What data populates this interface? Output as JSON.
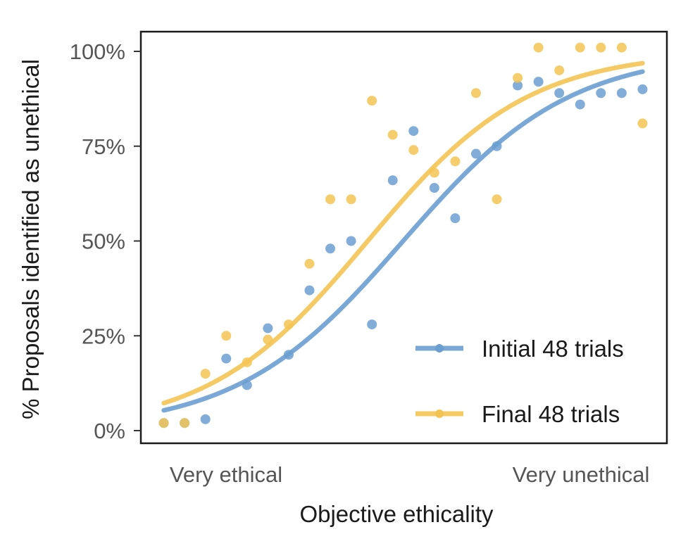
{
  "chart_data": {
    "type": "scatter",
    "title": "",
    "xlabel": "Objective ethicality",
    "ylabel": "% Proposals identified as unethical",
    "x_tick_labels": [
      "Very ethical",
      "Very unethical"
    ],
    "y_ticks": [
      0,
      25,
      50,
      75,
      100
    ],
    "y_tick_labels": [
      "0%",
      "25%",
      "50%",
      "75%",
      "100%"
    ],
    "xlim": [
      0,
      25
    ],
    "ylim": [
      -2,
      105
    ],
    "grid": false,
    "legend_position": "bottom-right",
    "series": [
      {
        "name": "Initial 48 trials",
        "color": "#6b9fd1",
        "points": [
          [
            1,
            2
          ],
          [
            2,
            2
          ],
          [
            3,
            3
          ],
          [
            4,
            19
          ],
          [
            5,
            12
          ],
          [
            6,
            27
          ],
          [
            7,
            20
          ],
          [
            8,
            37
          ],
          [
            9,
            48
          ],
          [
            10,
            50
          ],
          [
            11,
            28
          ],
          [
            12,
            66
          ],
          [
            13,
            79
          ],
          [
            14,
            64
          ],
          [
            15,
            56
          ],
          [
            16,
            73
          ],
          [
            17,
            75
          ],
          [
            18,
            91
          ],
          [
            19,
            92
          ],
          [
            20,
            89
          ],
          [
            21,
            86
          ],
          [
            22,
            89
          ],
          [
            23,
            89
          ],
          [
            24,
            90
          ]
        ],
        "fit": {
          "midpoint": 12.5,
          "slope": 0.25,
          "from": 1,
          "to": 24
        }
      },
      {
        "name": "Final 48 trials",
        "color": "#f4c453",
        "points": [
          [
            1,
            2
          ],
          [
            2,
            2
          ],
          [
            3,
            15
          ],
          [
            4,
            25
          ],
          [
            5,
            18
          ],
          [
            6,
            24
          ],
          [
            7,
            28
          ],
          [
            8,
            44
          ],
          [
            9,
            61
          ],
          [
            10,
            61
          ],
          [
            11,
            87
          ],
          [
            12,
            78
          ],
          [
            13,
            74
          ],
          [
            14,
            68
          ],
          [
            15,
            71
          ],
          [
            16,
            89
          ],
          [
            17,
            61
          ],
          [
            18,
            93
          ],
          [
            19,
            101
          ],
          [
            20,
            95
          ],
          [
            21,
            101
          ],
          [
            22,
            101
          ],
          [
            23,
            101
          ],
          [
            24,
            81
          ]
        ],
        "fit": {
          "midpoint": 10.8,
          "slope": 0.26,
          "from": 1,
          "to": 24
        }
      }
    ]
  }
}
